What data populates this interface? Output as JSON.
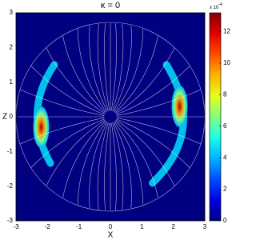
{
  "chart_data": {
    "type": "heatmap",
    "title": "κ = 0",
    "xlabel": "X",
    "ylabel": "Z",
    "xlim": [
      -3,
      3
    ],
    "xticks": [
      -3,
      -2,
      -1,
      0,
      1,
      2,
      3
    ],
    "ylim": [
      -3,
      3
    ],
    "yticks": [
      -3,
      -2,
      -1,
      0,
      1,
      2,
      3
    ],
    "clim": [
      0,
      13.2
    ],
    "cticks": [
      0,
      2,
      4,
      6,
      8,
      10,
      12
    ],
    "colorbar_scale": {
      "base": "x 10",
      "exponent": "-4"
    },
    "colormap": "jet",
    "hotspots": [
      {
        "x": -2.2,
        "y": -0.3,
        "value": 13
      },
      {
        "x": 2.2,
        "y": 0.3,
        "value": 13
      }
    ]
  }
}
